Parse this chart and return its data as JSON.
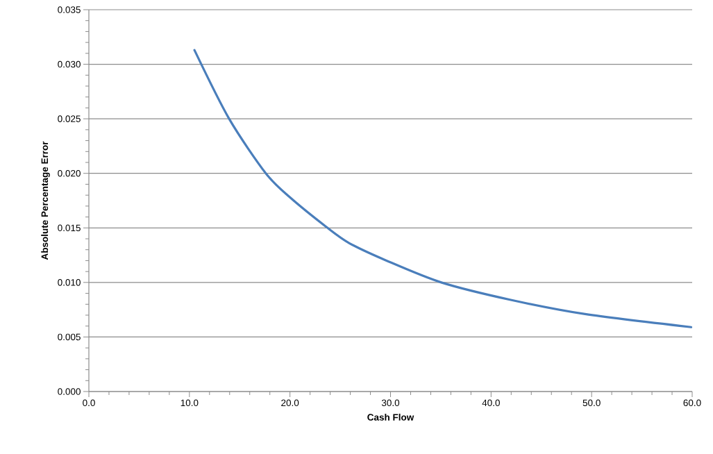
{
  "chart_data": {
    "type": "line",
    "xlabel": "Cash Flow",
    "ylabel": "Absolute Percentage Error",
    "x": [
      10.5,
      13.95,
      17.6,
      20.0,
      23.6,
      25.9,
      29.6,
      35.05,
      41.96,
      49.35,
      59.9
    ],
    "series": [
      {
        "color": "#4a7ebb",
        "values": [
          0.0313,
          0.025,
          0.02,
          0.0178,
          0.0151,
          0.0136,
          0.012,
          0.01,
          0.0084,
          0.0071,
          0.0059
        ]
      }
    ],
    "xlim": [
      0,
      60
    ],
    "ylim": [
      0,
      0.035
    ],
    "xticks": [
      {
        "value": 0,
        "label": "0.0"
      },
      {
        "value": 10,
        "label": "10.0"
      },
      {
        "value": 20,
        "label": "20.0"
      },
      {
        "value": 30,
        "label": "30.0"
      },
      {
        "value": 40,
        "label": "40.0"
      },
      {
        "value": 50,
        "label": "50.0"
      },
      {
        "value": 60,
        "label": "60.0"
      }
    ],
    "yticks": [
      {
        "value": 0,
        "label": "0.000"
      },
      {
        "value": 0.005,
        "label": "0.005"
      },
      {
        "value": 0.01,
        "label": "0.010"
      },
      {
        "value": 0.015,
        "label": "0.015"
      },
      {
        "value": 0.02,
        "label": "0.020"
      },
      {
        "value": 0.025,
        "label": "0.025"
      },
      {
        "value": 0.03,
        "label": "0.030"
      },
      {
        "value": 0.035,
        "label": "0.035"
      }
    ],
    "grid": "y",
    "marker": "none",
    "line_style": "solid"
  }
}
